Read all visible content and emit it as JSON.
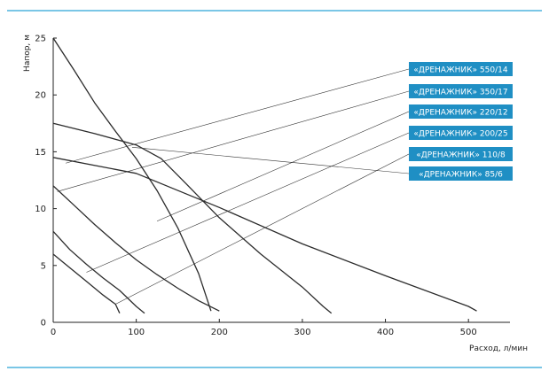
{
  "chart_data": {
    "type": "line",
    "xlabel": "Расход, л/мин",
    "ylabel": "Напор, м",
    "xlim": [
      0,
      550
    ],
    "ylim": [
      0,
      25
    ],
    "x_ticks": [
      0,
      100,
      200,
      300,
      400,
      500
    ],
    "y_ticks": [
      0,
      5,
      10,
      15,
      20,
      25
    ],
    "grid": false,
    "legend": "right, boxed labels with leader lines",
    "colors": {
      "accent": "#1f8fc4",
      "line": "#2b2b2b",
      "frame_line": "#2aa3d6"
    },
    "series": [
      {
        "name": "«ДРЕНАЖНИК» 550/14",
        "points": [
          [
            0,
            14.5
          ],
          [
            100,
            13.1
          ],
          [
            200,
            10.1
          ],
          [
            300,
            6.9
          ],
          [
            400,
            4.1
          ],
          [
            500,
            1.4
          ],
          [
            510,
            1.0
          ]
        ]
      },
      {
        "name": "«ДРЕНАЖНИК» 350/17",
        "points": [
          [
            0,
            17.5
          ],
          [
            50,
            16.6
          ],
          [
            100,
            15.6
          ],
          [
            130,
            14.4
          ],
          [
            160,
            12.2
          ],
          [
            200,
            9.2
          ],
          [
            250,
            6.0
          ],
          [
            300,
            3.1
          ],
          [
            325,
            1.4
          ],
          [
            335,
            0.8
          ]
        ]
      },
      {
        "name": "«ДРЕНАЖНИК» 220/12",
        "points": [
          [
            0,
            12
          ],
          [
            25,
            10.3
          ],
          [
            50,
            8.6
          ],
          [
            75,
            7.0
          ],
          [
            100,
            5.5
          ],
          [
            125,
            4.2
          ],
          [
            150,
            3.0
          ],
          [
            175,
            1.9
          ],
          [
            200,
            1.0
          ]
        ]
      },
      {
        "name": "«ДРЕНАЖНИК» 200/25",
        "points": [
          [
            0,
            25
          ],
          [
            25,
            22.2
          ],
          [
            50,
            19.3
          ],
          [
            75,
            16.8
          ],
          [
            100,
            14.4
          ],
          [
            125,
            11.6
          ],
          [
            150,
            8.3
          ],
          [
            175,
            4.3
          ],
          [
            190,
            1.0
          ]
        ]
      },
      {
        "name": "«ДРЕНАЖНИК» 110/8",
        "points": [
          [
            0,
            8
          ],
          [
            20,
            6.4
          ],
          [
            40,
            5.1
          ],
          [
            60,
            3.9
          ],
          [
            80,
            2.8
          ],
          [
            100,
            1.4
          ],
          [
            110,
            0.8
          ]
        ]
      },
      {
        "name": "«ДРЕНАЖНИК» 85/6",
        "points": [
          [
            0,
            6
          ],
          [
            20,
            4.8
          ],
          [
            40,
            3.6
          ],
          [
            60,
            2.4
          ],
          [
            75,
            1.6
          ],
          [
            80,
            0.8
          ]
        ]
      }
    ],
    "leader_anchors": [
      [
        15,
        14.0
      ],
      [
        5,
        11.5
      ],
      [
        125,
        8.9
      ],
      [
        40,
        4.4
      ],
      [
        75,
        1.6
      ],
      [
        95,
        15.4
      ]
    ]
  }
}
